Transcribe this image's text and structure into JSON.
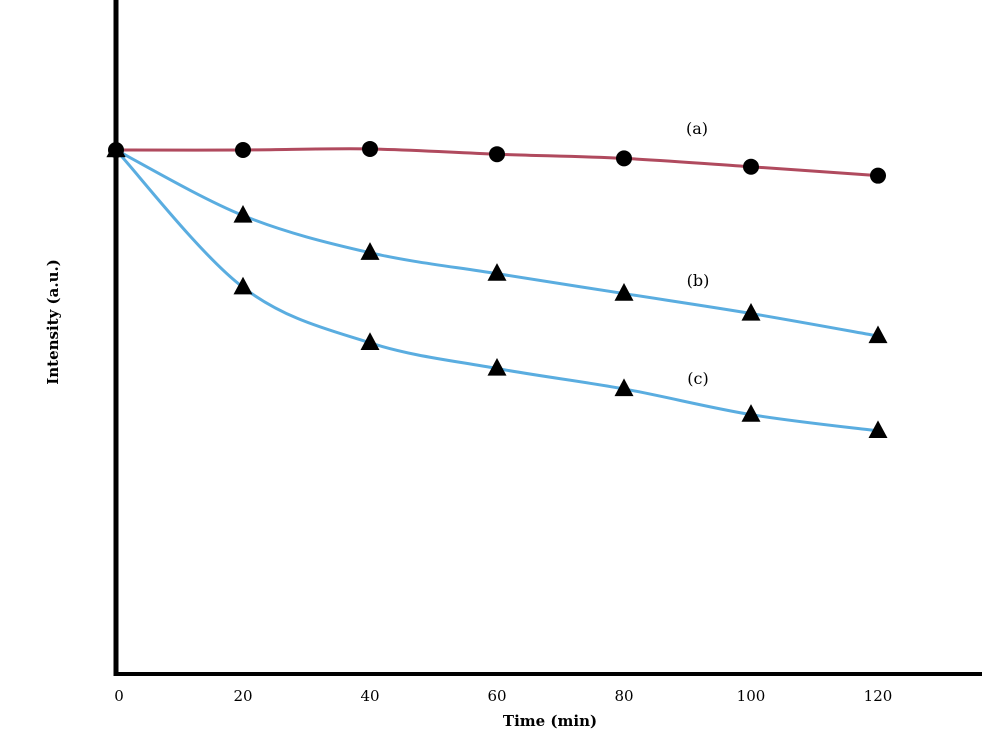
{
  "chart_data": {
    "type": "line",
    "title": "",
    "xlabel": "Time (min)",
    "ylabel": "Intensity (a.u.)",
    "x": [
      0,
      20,
      40,
      60,
      80,
      100,
      120
    ],
    "xlim": [
      0,
      135
    ],
    "ylim": [
      0,
      100
    ],
    "y_ticks_shown": false,
    "grid": false,
    "series": [
      {
        "name": "(a)",
        "marker": "circle",
        "color": "#b04a5e",
        "values": [
          100,
          100,
          100.2,
          99.2,
          98.4,
          96.8,
          95.1
        ]
      },
      {
        "name": "(b)",
        "marker": "triangle",
        "color": "#5aade0",
        "values": [
          100,
          87.5,
          80.4,
          76.4,
          72.6,
          68.8,
          64.5
        ]
      },
      {
        "name": "(c)",
        "marker": "triangle",
        "color": "#5aade0",
        "values": [
          100,
          73.8,
          63.2,
          58.3,
          54.4,
          49.5,
          46.4
        ]
      }
    ]
  }
}
